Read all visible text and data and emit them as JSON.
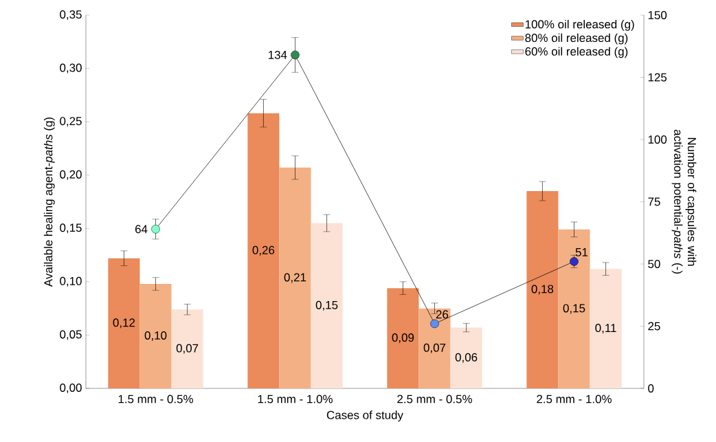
{
  "chart_data": {
    "type": "bar",
    "categories": [
      "1.5 mm - 0.5%",
      "1.5 mm - 1.0%",
      "2.5 mm - 0.5%",
      "2.5 mm - 1.0%"
    ],
    "xlabel": "Cases of study",
    "ylabel": "Available healing agent-*paths* (g)",
    "y2label": "Number of capsules with activation potential-*paths* (-)",
    "ylim": [
      0,
      0.35
    ],
    "yticks": [
      {
        "value": 0,
        "label": "0,00"
      },
      {
        "value": 0.05,
        "label": "0,05"
      },
      {
        "value": 0.1,
        "label": "0,10"
      },
      {
        "value": 0.15,
        "label": "0,15"
      },
      {
        "value": 0.2,
        "label": "0,20"
      },
      {
        "value": 0.25,
        "label": "0,25"
      },
      {
        "value": 0.3,
        "label": "0,30"
      },
      {
        "value": 0.35,
        "label": "0,35"
      }
    ],
    "y2lim": [
      0,
      150
    ],
    "y2ticks": [
      0,
      25,
      50,
      75,
      100,
      125,
      150
    ],
    "legend": "top right",
    "series": [
      {
        "name": "100% oil released (g)",
        "color": "#eb8a5a",
        "values": [
          0.122,
          0.258,
          0.094,
          0.185
        ],
        "errors": [
          0.007,
          0.013,
          0.006,
          0.009
        ],
        "value_labels": [
          "0,12",
          "0,26",
          "0,09",
          "0,18"
        ]
      },
      {
        "name": "80% oil released (g)",
        "color": "#f3b084",
        "values": [
          0.098,
          0.207,
          0.075,
          0.149
        ],
        "errors": [
          0.006,
          0.011,
          0.005,
          0.007
        ],
        "value_labels": [
          "0,10",
          "0,21",
          "0,07",
          "0,15"
        ]
      },
      {
        "name": "60% oil released (g)",
        "color": "#fbe2d5",
        "values": [
          0.074,
          0.155,
          0.057,
          0.112
        ],
        "errors": [
          0.005,
          0.008,
          0.004,
          0.006
        ],
        "value_labels": [
          "0,07",
          "0,15",
          "0,06",
          "0,11"
        ]
      },
      {
        "type": "line",
        "axis": "y2",
        "color": "#000000",
        "marker": "circle",
        "colors": [
          "#80ffcc",
          "#2e8b57",
          "#5b8ff0",
          "#2a2fc8"
        ],
        "values": [
          64,
          134,
          26,
          51
        ],
        "errors": [
          4,
          7,
          null,
          2.5
        ],
        "value_labels": [
          "64",
          "134",
          "26",
          "51"
        ]
      }
    ]
  }
}
